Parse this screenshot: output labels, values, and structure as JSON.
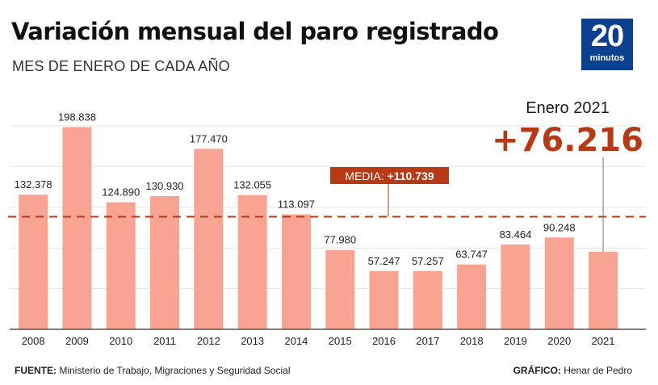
{
  "header": {
    "title": "Variación mensual del paro registrado",
    "subtitle": "MES DE ENERO DE CADA AÑO"
  },
  "logo": {
    "number": "20",
    "text": "minutos"
  },
  "highlight": {
    "label": "Enero 2021",
    "value": "+76.216"
  },
  "average": {
    "label": "MEDIA:",
    "value": "+110.739",
    "number": 110739
  },
  "footer": {
    "source_label": "FUENTE:",
    "source_text": "Ministerio de Trabajo, Migraciones y Seguridad Social",
    "graphic_label": "GRÁFICO:",
    "graphic_text": "Henar de Pedro"
  },
  "colors": {
    "bar": "#f9a392",
    "accent": "#b73a16",
    "grid": "#e5e5e5",
    "axis": "#555555"
  },
  "chart_data": {
    "type": "bar",
    "title": "Variación mensual del paro registrado",
    "subtitle": "MES DE ENERO DE CADA AÑO",
    "xlabel": "",
    "ylabel": "",
    "categories": [
      "2008",
      "2009",
      "2010",
      "2011",
      "2012",
      "2013",
      "2014",
      "2015",
      "2016",
      "2017",
      "2018",
      "2019",
      "2020",
      "2021"
    ],
    "values": [
      132378,
      198838,
      124890,
      130930,
      177470,
      132055,
      113097,
      77980,
      57247,
      57257,
      63747,
      83464,
      90248,
      76216
    ],
    "labels": [
      "132.378",
      "198.838",
      "124.890",
      "130.930",
      "177.470",
      "132.055",
      "113.097",
      "77.980",
      "57.247",
      "57.257",
      "63.747",
      "83.464",
      "90.248",
      ""
    ],
    "ylim": [
      0,
      200000
    ],
    "grid": true,
    "reference_line": {
      "label": "MEDIA",
      "value": 110739
    }
  }
}
